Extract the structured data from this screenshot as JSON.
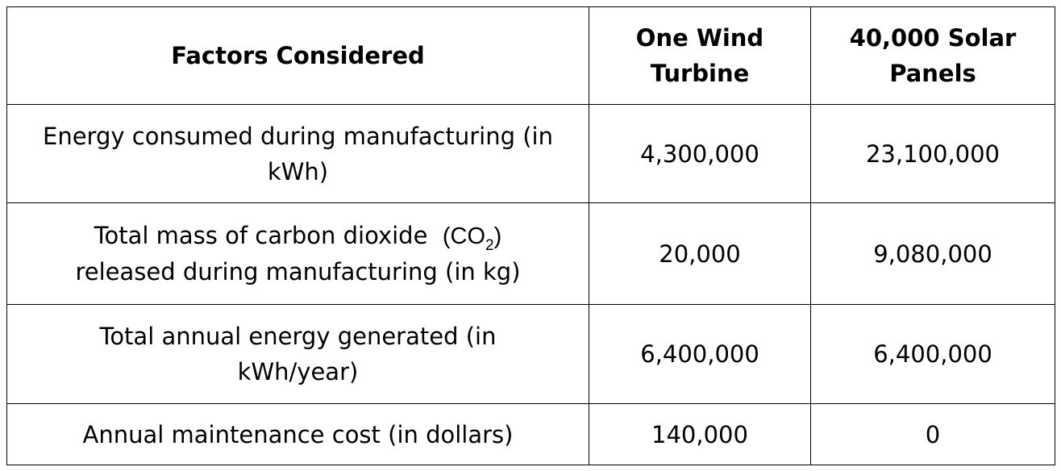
{
  "table": {
    "header": [
      "Factors Considered",
      "One Wind Turbine",
      "40,000 Solar Panels"
    ],
    "rows": [
      [
        {
          "text": "Energy consumed during manufacturing (in kWh)"
        },
        "4,300,000",
        "23,100,000"
      ],
      [
        {
          "text": "Total mass of carbon dioxide",
          "formula": "(CO",
          "subscript": "2",
          "formula_close": ")",
          "text2": "released during manufacturing (in kg)"
        },
        "20,000",
        "9,080,000"
      ],
      [
        {
          "text": "Total annual energy generated (in kWh/year)"
        },
        "6,400,000",
        "6,400,000"
      ],
      [
        {
          "text": "Annual maintenance cost (in dollars)"
        },
        "140,000",
        "0"
      ]
    ]
  }
}
